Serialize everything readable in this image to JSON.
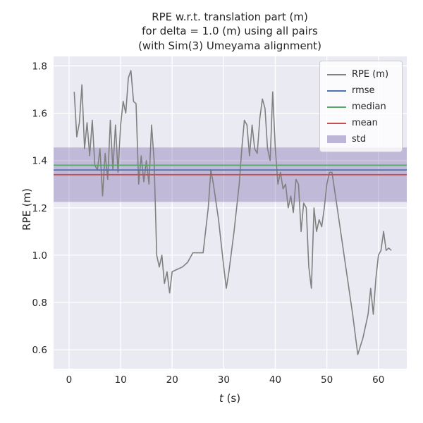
{
  "chart_data": {
    "type": "line",
    "title": "RPE w.r.t. translation part (m)\nfor delta = 1.0 (m) using all pairs\n(with Sim(3) Umeyama alignment)",
    "xlabel_var": "t",
    "xlabel_unit": " (s)",
    "ylabel": "RPE (m)",
    "xlim": [
      -3.0,
      65.5
    ],
    "ylim": [
      0.52,
      1.84
    ],
    "xticks": [
      0,
      10,
      20,
      30,
      40,
      50,
      60
    ],
    "yticks": [
      0.6,
      0.8,
      1.0,
      1.2,
      1.4,
      1.6,
      1.8
    ],
    "grid": true,
    "legend_position": "upper right",
    "colors": {
      "plot_background": "#eaeaf2",
      "gridline": "#ffffff",
      "rpe_line": "#808080",
      "rmse_line": "#4c72b0",
      "median_line": "#55a868",
      "mean_line": "#c44e52",
      "std_band": "#8172b2"
    },
    "stats": {
      "rmse": 1.36,
      "median": 1.38,
      "mean": 1.34
    },
    "band": {
      "name": "std",
      "y0": 1.225,
      "y1": 1.455,
      "alpha": 0.4
    },
    "hlines": [
      {
        "name": "rmse",
        "y": 1.36,
        "color": "#4c72b0"
      },
      {
        "name": "median",
        "y": 1.38,
        "color": "#55a868"
      },
      {
        "name": "mean",
        "y": 1.34,
        "color": "#c44e52"
      }
    ],
    "series": [
      {
        "name": "RPE (m)",
        "color": "#808080",
        "points": [
          [
            1.0,
            1.69
          ],
          [
            1.5,
            1.5
          ],
          [
            2.0,
            1.56
          ],
          [
            2.5,
            1.72
          ],
          [
            3.0,
            1.45
          ],
          [
            3.5,
            1.56
          ],
          [
            4.0,
            1.42
          ],
          [
            4.5,
            1.57
          ],
          [
            5.0,
            1.38
          ],
          [
            5.5,
            1.36
          ],
          [
            6.0,
            1.45
          ],
          [
            6.5,
            1.25
          ],
          [
            7.0,
            1.43
          ],
          [
            7.5,
            1.32
          ],
          [
            8.0,
            1.57
          ],
          [
            8.5,
            1.36
          ],
          [
            9.0,
            1.55
          ],
          [
            9.5,
            1.35
          ],
          [
            10.0,
            1.55
          ],
          [
            10.5,
            1.65
          ],
          [
            11.0,
            1.6
          ],
          [
            11.5,
            1.75
          ],
          [
            12.0,
            1.78
          ],
          [
            12.5,
            1.65
          ],
          [
            13.0,
            1.64
          ],
          [
            13.5,
            1.3
          ],
          [
            14.0,
            1.42
          ],
          [
            14.5,
            1.31
          ],
          [
            15.0,
            1.4
          ],
          [
            15.5,
            1.3
          ],
          [
            16.0,
            1.55
          ],
          [
            16.5,
            1.4
          ],
          [
            17.0,
            1.0
          ],
          [
            17.5,
            0.95
          ],
          [
            18.0,
            1.0
          ],
          [
            18.5,
            0.88
          ],
          [
            19.0,
            0.93
          ],
          [
            19.5,
            0.84
          ],
          [
            20.0,
            0.93
          ],
          [
            21.0,
            0.94
          ],
          [
            22.0,
            0.95
          ],
          [
            23.0,
            0.97
          ],
          [
            24.0,
            1.01
          ],
          [
            25.0,
            1.01
          ],
          [
            26.0,
            1.01
          ],
          [
            27.0,
            1.2
          ],
          [
            27.5,
            1.36
          ],
          [
            28.0,
            1.3
          ],
          [
            29.0,
            1.15
          ],
          [
            30.0,
            0.95
          ],
          [
            30.5,
            0.86
          ],
          [
            31.0,
            0.93
          ],
          [
            32.0,
            1.1
          ],
          [
            33.0,
            1.3
          ],
          [
            33.5,
            1.45
          ],
          [
            34.0,
            1.57
          ],
          [
            34.5,
            1.55
          ],
          [
            35.0,
            1.42
          ],
          [
            35.5,
            1.55
          ],
          [
            36.0,
            1.45
          ],
          [
            36.5,
            1.43
          ],
          [
            37.0,
            1.58
          ],
          [
            37.5,
            1.66
          ],
          [
            38.0,
            1.62
          ],
          [
            38.5,
            1.45
          ],
          [
            39.0,
            1.4
          ],
          [
            39.5,
            1.69
          ],
          [
            40.0,
            1.45
          ],
          [
            40.5,
            1.3
          ],
          [
            41.0,
            1.35
          ],
          [
            41.5,
            1.28
          ],
          [
            42.0,
            1.3
          ],
          [
            42.5,
            1.2
          ],
          [
            43.0,
            1.25
          ],
          [
            43.5,
            1.18
          ],
          [
            44.0,
            1.32
          ],
          [
            44.5,
            1.3
          ],
          [
            45.0,
            1.1
          ],
          [
            45.5,
            1.22
          ],
          [
            46.0,
            1.2
          ],
          [
            46.5,
            0.95
          ],
          [
            47.0,
            0.86
          ],
          [
            47.5,
            1.2
          ],
          [
            48.0,
            1.1
          ],
          [
            48.5,
            1.15
          ],
          [
            49.0,
            1.12
          ],
          [
            49.5,
            1.2
          ],
          [
            50.0,
            1.3
          ],
          [
            50.5,
            1.35
          ],
          [
            51.0,
            1.35
          ],
          [
            52.0,
            1.2
          ],
          [
            53.0,
            1.05
          ],
          [
            54.0,
            0.9
          ],
          [
            55.0,
            0.75
          ],
          [
            56.0,
            0.58
          ],
          [
            57.0,
            0.65
          ],
          [
            58.0,
            0.75
          ],
          [
            58.5,
            0.86
          ],
          [
            59.0,
            0.75
          ],
          [
            59.5,
            0.9
          ],
          [
            60.0,
            1.0
          ],
          [
            60.5,
            1.02
          ],
          [
            61.0,
            1.1
          ],
          [
            61.5,
            1.02
          ],
          [
            62.0,
            1.03
          ],
          [
            62.5,
            1.02
          ]
        ]
      }
    ]
  },
  "legend": {
    "items": [
      {
        "label": "RPE (m)",
        "color": "#808080",
        "kind": "line"
      },
      {
        "label": "rmse",
        "color": "#4c72b0",
        "kind": "line"
      },
      {
        "label": "median",
        "color": "#55a868",
        "kind": "line"
      },
      {
        "label": "mean",
        "color": "#c44e52",
        "kind": "line"
      },
      {
        "label": "std",
        "color": "#8172b2",
        "kind": "patch"
      }
    ]
  }
}
